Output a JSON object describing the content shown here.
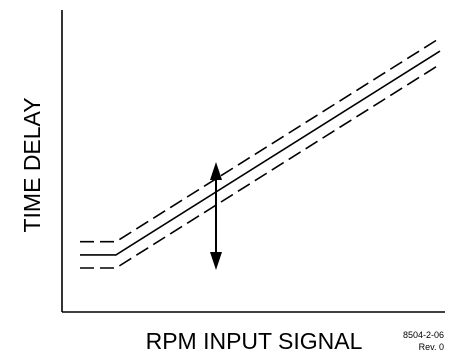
{
  "chart_data": {
    "type": "line",
    "xlabel": "RPM INPUT SIGNAL",
    "ylabel": "TIME DELAY",
    "grid": false,
    "legend": "none",
    "series": [
      {
        "style": "dashed",
        "x": [
          0,
          0.1,
          1.0
        ],
        "y": [
          0.38,
          0.38,
          1.0
        ]
      },
      {
        "style": "solid",
        "x": [
          0,
          0.1,
          1.0
        ],
        "y": [
          0.34,
          0.34,
          0.96
        ]
      },
      {
        "style": "dashed",
        "x": [
          0,
          0.1,
          1.0
        ],
        "y": [
          0.3,
          0.3,
          0.92
        ]
      }
    ],
    "annotations": [
      {
        "kind": "double-arrow",
        "x": 0.4,
        "y_from": 0.3,
        "y_to": 0.58
      }
    ],
    "doc_id": "8504-2-06",
    "revision": "Rev. 0"
  }
}
